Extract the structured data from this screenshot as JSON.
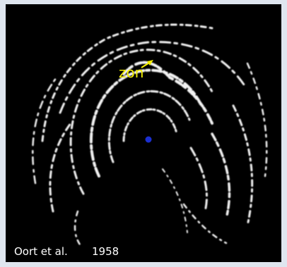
{
  "image": {
    "label": "zon",
    "caption": {
      "authors": "Oort et al.",
      "year": "1958"
    }
  }
}
